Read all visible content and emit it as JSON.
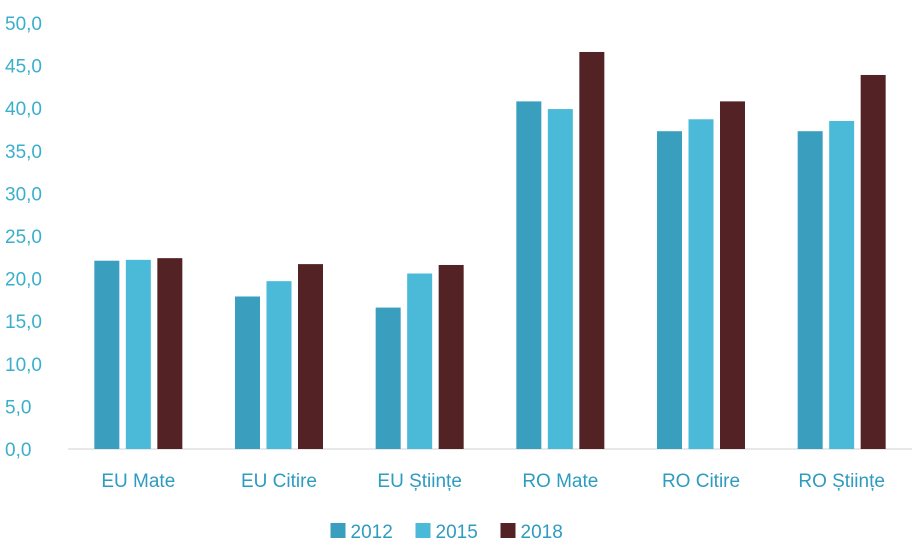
{
  "chart_data": {
    "type": "bar",
    "title": "",
    "xlabel": "",
    "ylabel": "",
    "ylim": [
      0,
      50
    ],
    "y_ticks": [
      "0,0",
      "5,0",
      "10,0",
      "15,0",
      "20,0",
      "25,0",
      "30,0",
      "35,0",
      "40,0",
      "45,0",
      "50,0"
    ],
    "y_tick_values": [
      0,
      5,
      10,
      15,
      20,
      25,
      30,
      35,
      40,
      45,
      50
    ],
    "categories": [
      "EU Mate",
      "EU Citire",
      "EU Științe",
      "RO Mate",
      "RO Citire",
      "RO Științe"
    ],
    "series": [
      {
        "name": "2012",
        "color": "#3A9FBF",
        "values": [
          22.1,
          17.9,
          16.6,
          40.8,
          37.3,
          37.3
        ]
      },
      {
        "name": "2015",
        "color": "#4BBAD8",
        "values": [
          22.2,
          19.7,
          20.6,
          39.9,
          38.7,
          38.5
        ]
      },
      {
        "name": "2018",
        "color": "#532224",
        "values": [
          22.4,
          21.7,
          21.6,
          46.6,
          40.8,
          43.9
        ]
      }
    ],
    "grid": false,
    "legend_position": "bottom",
    "axis_text_color": "#3AAFCB",
    "category_text_color": "#2E9BC0",
    "legend_text_color": "#2E9BC0",
    "axis_line_color": "#D9D9D9"
  }
}
